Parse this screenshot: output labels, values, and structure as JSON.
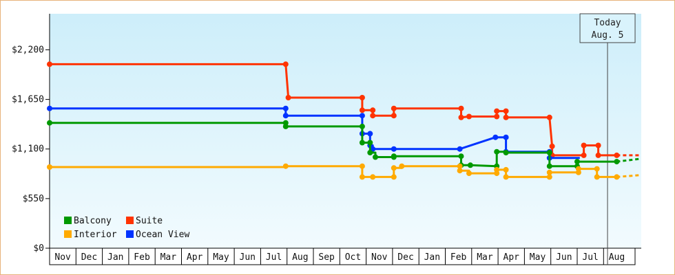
{
  "chart_data": {
    "type": "line",
    "title": "",
    "xlabel": "",
    "ylabel": "",
    "ylim": [
      0,
      2600
    ],
    "y_ticks": [
      {
        "value": 0,
        "label": "$0"
      },
      {
        "value": 550,
        "label": "$550"
      },
      {
        "value": 1100,
        "label": "$1,100"
      },
      {
        "value": 1650,
        "label": "$1,650"
      },
      {
        "value": 2200,
        "label": "$2,200"
      }
    ],
    "months": [
      "Nov",
      "Dec",
      "Jan",
      "Feb",
      "Mar",
      "Apr",
      "May",
      "Jun",
      "Jul",
      "Aug",
      "Sep",
      "Oct",
      "Nov",
      "Dec",
      "Jan",
      "Feb",
      "Mar",
      "Apr",
      "May",
      "Jun",
      "Jul",
      "Aug"
    ],
    "x_units": "month index (0 = start of Nov)",
    "grid": false,
    "legend_position": "bottom-left",
    "today": {
      "label": "Today",
      "date": "Aug. 5",
      "x": 21.15
    },
    "series": [
      {
        "name": "Suite",
        "color": "#ff3300",
        "points": [
          [
            0,
            2040
          ],
          [
            8.95,
            2040
          ],
          [
            8.95,
            2040
          ],
          [
            9.05,
            1670
          ],
          [
            11.85,
            1670
          ],
          [
            11.85,
            1530
          ],
          [
            12.25,
            1530
          ],
          [
            12.25,
            1470
          ],
          [
            13.05,
            1470
          ],
          [
            13.05,
            1550
          ],
          [
            15.6,
            1550
          ],
          [
            15.6,
            1450
          ],
          [
            15.9,
            1460
          ],
          [
            16.95,
            1460
          ],
          [
            16.95,
            1520
          ],
          [
            17.3,
            1520
          ],
          [
            17.3,
            1450
          ],
          [
            18.95,
            1450
          ],
          [
            19.05,
            1130
          ],
          [
            19.05,
            1030
          ],
          [
            20.25,
            1030
          ],
          [
            20.25,
            1140
          ],
          [
            20.8,
            1140
          ],
          [
            20.8,
            1030
          ],
          [
            21.5,
            1030
          ]
        ],
        "markers": [
          [
            0,
            2040
          ],
          [
            8.95,
            2040
          ],
          [
            9.05,
            1670
          ],
          [
            11.85,
            1670
          ],
          [
            11.85,
            1530
          ],
          [
            12.25,
            1530
          ],
          [
            12.25,
            1470
          ],
          [
            13.05,
            1470
          ],
          [
            13.05,
            1550
          ],
          [
            15.6,
            1550
          ],
          [
            15.6,
            1450
          ],
          [
            15.9,
            1460
          ],
          [
            16.95,
            1460
          ],
          [
            16.95,
            1520
          ],
          [
            17.3,
            1520
          ],
          [
            17.3,
            1450
          ],
          [
            18.95,
            1450
          ],
          [
            19.05,
            1130
          ],
          [
            19.05,
            1030
          ],
          [
            20.25,
            1030
          ],
          [
            20.25,
            1140
          ],
          [
            20.8,
            1140
          ],
          [
            20.8,
            1030
          ],
          [
            21.5,
            1030
          ]
        ],
        "projection": [
          [
            21.5,
            1030
          ],
          [
            22.35,
            1030
          ]
        ]
      },
      {
        "name": "Ocean View",
        "color": "#0033ff",
        "points": [
          [
            0,
            1550
          ],
          [
            8.95,
            1550
          ],
          [
            8.95,
            1470
          ],
          [
            11.85,
            1470
          ],
          [
            11.85,
            1270
          ],
          [
            12.15,
            1270
          ],
          [
            12.15,
            1140
          ],
          [
            12.25,
            1140
          ],
          [
            12.25,
            1100
          ],
          [
            13.05,
            1100
          ],
          [
            13.05,
            1100
          ],
          [
            15.55,
            1100
          ],
          [
            15.55,
            1100
          ],
          [
            16.9,
            1230
          ],
          [
            17.3,
            1230
          ],
          [
            17.3,
            1070
          ],
          [
            18.95,
            1070
          ],
          [
            18.95,
            1000
          ],
          [
            20.1,
            1000
          ]
        ],
        "markers": [
          [
            0,
            1550
          ],
          [
            8.95,
            1550
          ],
          [
            8.95,
            1470
          ],
          [
            11.85,
            1470
          ],
          [
            11.85,
            1270
          ],
          [
            12.15,
            1270
          ],
          [
            12.15,
            1140
          ],
          [
            12.25,
            1100
          ],
          [
            13.05,
            1100
          ],
          [
            15.55,
            1100
          ],
          [
            16.9,
            1230
          ],
          [
            17.3,
            1230
          ],
          [
            17.3,
            1070
          ],
          [
            18.95,
            1070
          ],
          [
            18.95,
            1000
          ]
        ],
        "projection": []
      },
      {
        "name": "Balcony",
        "color": "#009900",
        "points": [
          [
            0,
            1390
          ],
          [
            8.95,
            1390
          ],
          [
            8.95,
            1350
          ],
          [
            11.85,
            1350
          ],
          [
            11.85,
            1170
          ],
          [
            12.15,
            1170
          ],
          [
            12.15,
            1060
          ],
          [
            12.35,
            1060
          ],
          [
            12.35,
            1010
          ],
          [
            13.05,
            1010
          ],
          [
            13.05,
            1020
          ],
          [
            15.6,
            1020
          ],
          [
            15.6,
            920
          ],
          [
            15.95,
            920
          ],
          [
            16.95,
            910
          ],
          [
            16.95,
            1070
          ],
          [
            17.3,
            1070
          ],
          [
            17.3,
            1060
          ],
          [
            18.95,
            1060
          ],
          [
            18.95,
            910
          ],
          [
            20,
            910
          ],
          [
            20,
            960
          ],
          [
            21.5,
            960
          ]
        ],
        "markers": [
          [
            0,
            1390
          ],
          [
            8.95,
            1390
          ],
          [
            8.95,
            1350
          ],
          [
            11.85,
            1350
          ],
          [
            11.85,
            1170
          ],
          [
            12.15,
            1170
          ],
          [
            12.15,
            1060
          ],
          [
            12.35,
            1010
          ],
          [
            13.05,
            1010
          ],
          [
            13.05,
            1020
          ],
          [
            15.6,
            1020
          ],
          [
            15.6,
            920
          ],
          [
            15.95,
            920
          ],
          [
            16.95,
            910
          ],
          [
            16.95,
            1070
          ],
          [
            17.3,
            1060
          ],
          [
            18.95,
            1060
          ],
          [
            18.95,
            910
          ],
          [
            20,
            910
          ],
          [
            20,
            960
          ],
          [
            21.5,
            960
          ]
        ],
        "projection": [
          [
            21.5,
            960
          ],
          [
            22.35,
            990
          ]
        ]
      },
      {
        "name": "Interior",
        "color": "#ffaa00",
        "points": [
          [
            0,
            900
          ],
          [
            8.95,
            900
          ],
          [
            8.95,
            910
          ],
          [
            11.85,
            910
          ],
          [
            11.85,
            790
          ],
          [
            12.25,
            790
          ],
          [
            12.25,
            790
          ],
          [
            13.05,
            790
          ],
          [
            13.05,
            890
          ],
          [
            13.35,
            890
          ],
          [
            13.35,
            910
          ],
          [
            15.55,
            910
          ],
          [
            15.55,
            860
          ],
          [
            15.9,
            860
          ],
          [
            15.9,
            830
          ],
          [
            16.95,
            830
          ],
          [
            16.95,
            870
          ],
          [
            17.3,
            870
          ],
          [
            17.3,
            790
          ],
          [
            18.95,
            790
          ],
          [
            18.95,
            840
          ],
          [
            20.05,
            840
          ],
          [
            20.05,
            880
          ],
          [
            20.75,
            880
          ],
          [
            20.75,
            790
          ],
          [
            21.5,
            790
          ]
        ],
        "markers": [
          [
            0,
            900
          ],
          [
            8.95,
            910
          ],
          [
            11.85,
            910
          ],
          [
            11.85,
            790
          ],
          [
            12.25,
            790
          ],
          [
            13.05,
            790
          ],
          [
            13.05,
            890
          ],
          [
            13.35,
            910
          ],
          [
            15.55,
            910
          ],
          [
            15.55,
            860
          ],
          [
            15.9,
            830
          ],
          [
            16.95,
            830
          ],
          [
            16.95,
            870
          ],
          [
            17.3,
            870
          ],
          [
            17.3,
            790
          ],
          [
            18.95,
            790
          ],
          [
            18.95,
            840
          ],
          [
            20.05,
            840
          ],
          [
            20.05,
            880
          ],
          [
            20.75,
            880
          ],
          [
            20.75,
            790
          ],
          [
            21.5,
            790
          ]
        ],
        "projection": [
          [
            21.5,
            790
          ],
          [
            22.35,
            810
          ]
        ]
      }
    ],
    "legend": [
      {
        "name": "Balcony",
        "color": "#009900"
      },
      {
        "name": "Suite",
        "color": "#ff3300"
      },
      {
        "name": "Interior",
        "color": "#ffaa00"
      },
      {
        "name": "Ocean View",
        "color": "#0033ff"
      }
    ]
  }
}
